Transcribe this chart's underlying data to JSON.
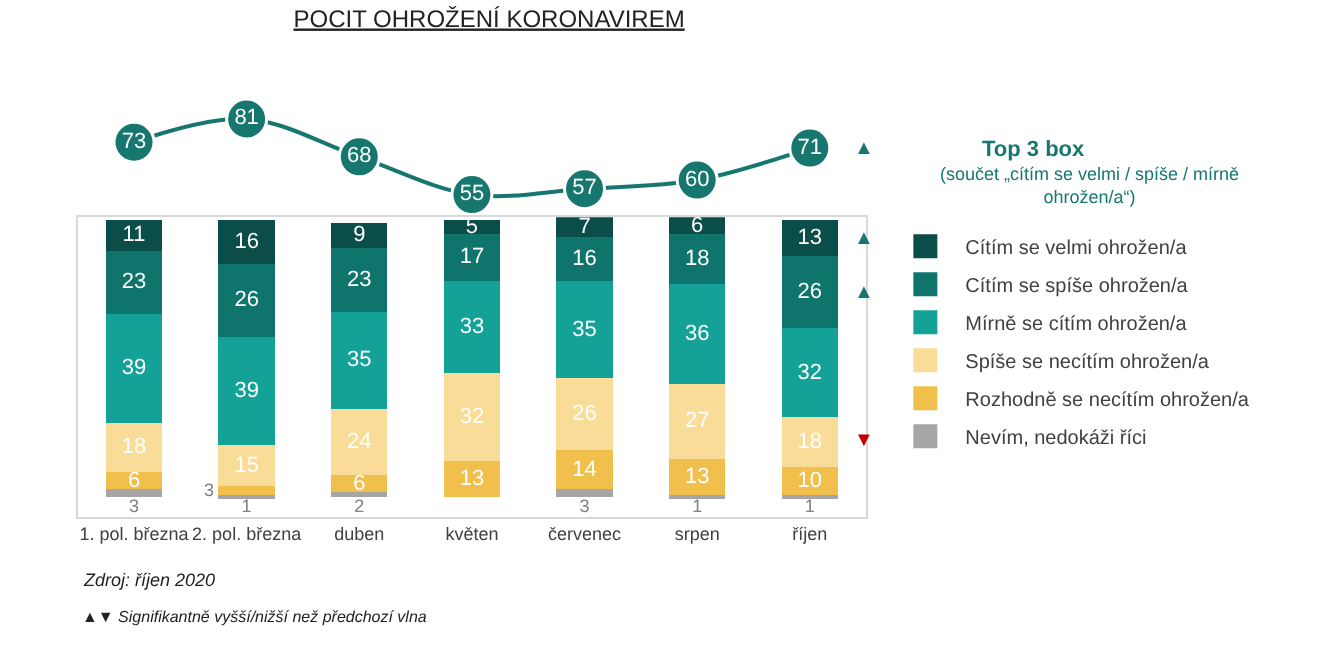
{
  "chart_data": [
    {
      "type": "line",
      "title": "POCIT OHROŽENÍ KORONAVIREM",
      "categories": [
        null,
        null,
        null,
        null,
        null,
        null,
        null
      ],
      "series": [
        {
          "name": "Top 3 box",
          "color": "#17776f",
          "values": [
            73,
            81,
            68,
            55,
            57,
            60,
            71
          ]
        }
      ],
      "marker": "circle",
      "data_labels": true,
      "tick_labels": false,
      "annotations": [
        "(součet „cítím se velmi / spíše / mírně ohrožen/a“)",
        "▲"
      ]
    },
    {
      "type": "bar",
      "stacked": true,
      "categories": [
        "1. pol. března",
        "2. pol. března",
        "duben",
        "květen",
        "červenec",
        "srpen",
        "říjen"
      ],
      "series": [
        {
          "name": "Nevím, nedokáži říci",
          "color": "#a6a6a6",
          "values": [
            3,
            1,
            2,
            null,
            3,
            1,
            1
          ]
        },
        {
          "name": "Rozhodně se necítím ohrožen/a",
          "color": "#f0bf4c",
          "values": [
            6,
            3,
            6,
            13,
            14,
            13,
            10
          ]
        },
        {
          "name": "Spíše se necítím ohrožen/a",
          "color": "#f8dc98",
          "values": [
            18,
            15,
            24,
            32,
            26,
            27,
            18
          ]
        },
        {
          "name": "Mírně se cítím ohrožen/a",
          "color": "#13a198",
          "values": [
            39,
            39,
            35,
            33,
            35,
            36,
            32
          ]
        },
        {
          "name": "Cítím se spíše ohrožen/a",
          "color": "#0f746c",
          "values": [
            23,
            26,
            23,
            17,
            16,
            18,
            26
          ]
        },
        {
          "name": "Cítím se velmi ohrožen/a",
          "color": "#0b4d48",
          "values": [
            11,
            16,
            9,
            5,
            7,
            6,
            13
          ]
        }
      ],
      "data_labels": true,
      "legend": "right",
      "tick_labels": "x",
      "annotations": [
        "Zdroj: říjen 2020",
        "▲▼ Signifikantně vyšší/nižší než předchozí vlna",
        "▲",
        "▲",
        "▼"
      ]
    }
  ]
}
